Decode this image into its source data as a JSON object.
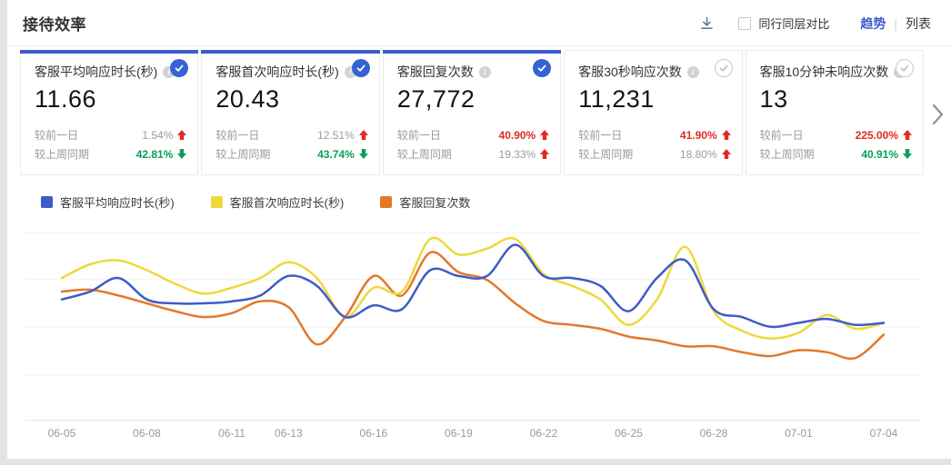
{
  "header": {
    "title": "接待效率",
    "tools": {
      "compare_checkbox": {
        "label": "同行同层对比",
        "checked": false
      },
      "view_toggle": {
        "options": [
          "趋势",
          "列表"
        ],
        "active": "趋势"
      }
    }
  },
  "colors": {
    "accent_blue": "#3D5CC8",
    "up_red": "#E02B20",
    "down_green": "#09A05A"
  },
  "metric_cards": [
    {
      "title": "客服平均响应时长(秒)",
      "value": "11.66",
      "selected": true,
      "rows": [
        {
          "label": "较前一日",
          "value": "1.54%",
          "trend": "up",
          "style": "neutral"
        },
        {
          "label": "较上周同期",
          "value": "42.81%",
          "trend": "down",
          "style": "good"
        }
      ]
    },
    {
      "title": "客服首次响应时长(秒)",
      "value": "20.43",
      "selected": true,
      "rows": [
        {
          "label": "较前一日",
          "value": "12.51%",
          "trend": "up",
          "style": "neutral"
        },
        {
          "label": "较上周同期",
          "value": "43.74%",
          "trend": "down",
          "style": "good"
        }
      ]
    },
    {
      "title": "客服回复次数",
      "value": "27,772",
      "selected": true,
      "rows": [
        {
          "label": "较前一日",
          "value": "40.90%",
          "trend": "up",
          "style": "bad"
        },
        {
          "label": "较上周同期",
          "value": "19.33%",
          "trend": "up",
          "style": "neutral"
        }
      ]
    },
    {
      "title": "客服30秒响应次数",
      "value": "11,231",
      "selected": false,
      "rows": [
        {
          "label": "较前一日",
          "value": "41.90%",
          "trend": "up",
          "style": "bad"
        },
        {
          "label": "较上周同期",
          "value": "18.80%",
          "trend": "up",
          "style": "neutral"
        }
      ]
    },
    {
      "title": "客服10分钟未响应次数",
      "value": "13",
      "selected": false,
      "rows": [
        {
          "label": "较前一日",
          "value": "225.00%",
          "trend": "up",
          "style": "bad"
        },
        {
          "label": "较上周同期",
          "value": "40.91%",
          "trend": "down",
          "style": "good"
        }
      ]
    }
  ],
  "chart_data": {
    "type": "line",
    "title": "",
    "xlabel": "",
    "ylabel": "",
    "y_axis_note": "y axis is unlabeled in the UI; values are relative heights (0-100) estimated from the plot",
    "ylim": [
      0,
      100
    ],
    "grid": "horizontal",
    "legend_position": "top-left",
    "dates": [
      "06-05",
      "06-06",
      "06-07",
      "06-08",
      "06-09",
      "06-10",
      "06-11",
      "06-12",
      "06-13",
      "06-14",
      "06-15",
      "06-16",
      "06-17",
      "06-18",
      "06-19",
      "06-20",
      "06-21",
      "06-22",
      "06-23",
      "06-24",
      "06-25",
      "06-26",
      "06-27",
      "06-28",
      "06-29",
      "06-30",
      "07-01",
      "07-02",
      "07-03",
      "07-04"
    ],
    "x_tick_labels": [
      "06-05",
      "06-08",
      "06-11",
      "06-13",
      "06-16",
      "06-19",
      "06-22",
      "06-25",
      "06-28",
      "07-01",
      "07-04"
    ],
    "x_tick_indices": [
      0,
      3,
      6,
      8,
      11,
      14,
      17,
      20,
      23,
      26,
      29
    ],
    "series": [
      {
        "name": "客服平均响应时长(秒)",
        "key": "avg-response-time",
        "color": "#3D5CC8",
        "values": [
          62,
          66,
          73,
          62,
          60,
          60,
          61,
          64,
          74,
          69,
          53,
          59,
          57,
          77,
          74,
          74,
          90,
          74,
          73,
          69,
          56,
          73,
          82,
          57,
          53,
          48,
          50,
          52,
          49,
          50
        ]
      },
      {
        "name": "客服首次响应时长(秒)",
        "key": "first-response-time",
        "color": "#EDD93B",
        "values": [
          73,
          80,
          82,
          77,
          70,
          65,
          68,
          73,
          81,
          73,
          53,
          68,
          66,
          93,
          85,
          88,
          93,
          75,
          69,
          62,
          49,
          62,
          89,
          56,
          46,
          42,
          45,
          54,
          47,
          50
        ]
      },
      {
        "name": "客服回复次数",
        "key": "reply-count",
        "color": "#E4782A",
        "values": [
          66,
          67,
          64,
          60,
          56,
          53,
          55,
          61,
          58,
          39,
          53,
          74,
          64,
          86,
          76,
          72,
          60,
          51,
          49,
          47,
          43,
          41,
          38,
          38,
          35,
          33,
          36,
          35,
          32,
          44
        ]
      }
    ]
  }
}
